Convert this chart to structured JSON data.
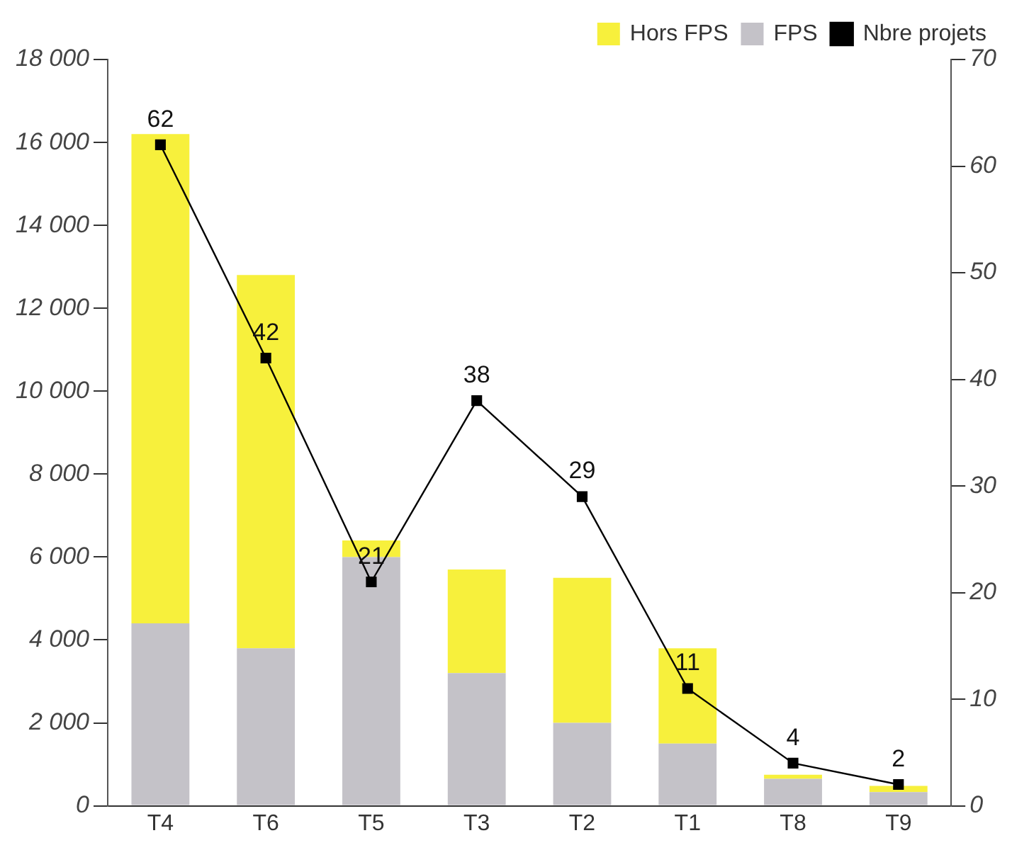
{
  "chart_data": {
    "type": "bar",
    "stacked": true,
    "categories": [
      "T4",
      "T6",
      "T5",
      "T3",
      "T2",
      "T1",
      "T8",
      "T9"
    ],
    "series": [
      {
        "name": "FPS",
        "color": "#c4c2c8",
        "values": [
          4400,
          3800,
          6000,
          3200,
          2000,
          1500,
          650,
          330
        ]
      },
      {
        "name": "Hors FPS",
        "color": "#f7f03c",
        "values": [
          11800,
          9000,
          400,
          2500,
          3500,
          2300,
          100,
          150
        ]
      },
      {
        "name": "Nbre projets",
        "type": "line",
        "axis": "y2",
        "color": "#000000",
        "marker": "square",
        "values": [
          62,
          42,
          21,
          38,
          29,
          11,
          4,
          2
        ],
        "value_labels": [
          "62",
          "42",
          "21",
          "38",
          "29",
          "11",
          "4",
          "2"
        ]
      }
    ],
    "ylim": [
      0,
      18000
    ],
    "yticks": [
      0,
      {
        "value": 2000,
        "label": "2 000"
      },
      {
        "value": 4000,
        "label": "4 000"
      },
      {
        "value": 6000,
        "label": "6 000"
      },
      {
        "value": 8000,
        "label": "8 000"
      },
      {
        "value": 10000,
        "label": "10 000"
      },
      {
        "value": 12000,
        "label": "12 000"
      },
      {
        "value": 14000,
        "label": "14 000"
      },
      {
        "value": 16000,
        "label": "16 000"
      },
      {
        "value": 18000,
        "label": "18 000"
      }
    ],
    "y2lim": [
      0,
      70
    ],
    "y2ticks": [
      0,
      10,
      20,
      30,
      40,
      50,
      60,
      70
    ],
    "grid": false,
    "legend": "top right"
  }
}
